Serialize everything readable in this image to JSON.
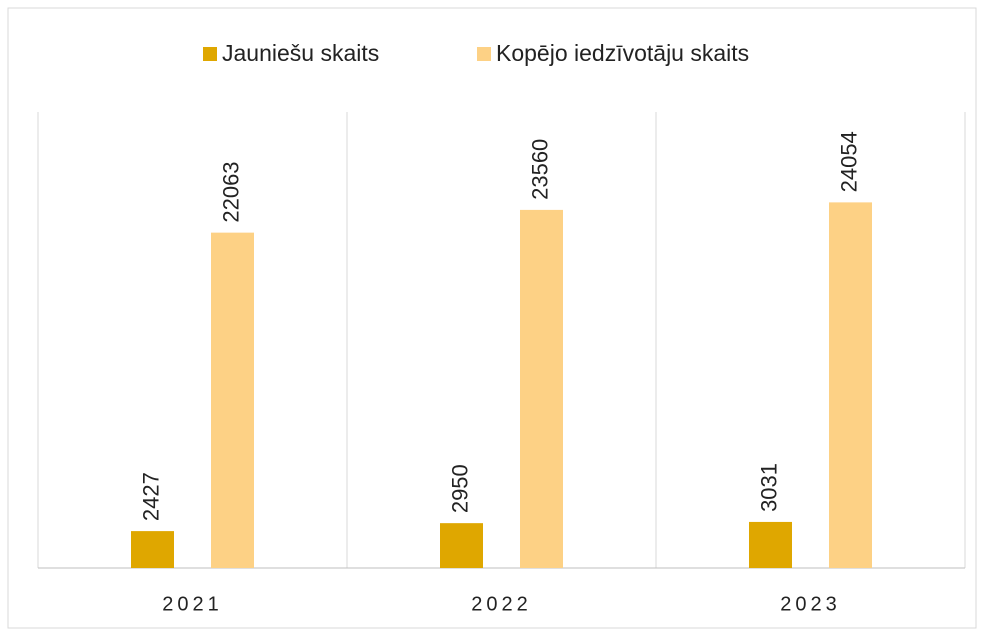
{
  "chart_data": {
    "type": "bar",
    "categories": [
      "2021",
      "2022",
      "2023"
    ],
    "series": [
      {
        "name": "Jauniešu skaits",
        "color": "#dfa700",
        "values": [
          2427,
          2950,
          3031
        ]
      },
      {
        "name": "Kopējo iedzīvotāju skaits",
        "color": "#fdd185",
        "values": [
          22063,
          23560,
          24054
        ]
      }
    ],
    "ylim": [
      0,
      30000
    ],
    "legend": "top"
  }
}
